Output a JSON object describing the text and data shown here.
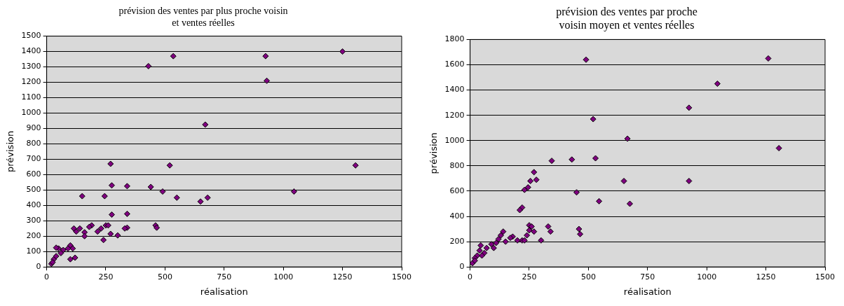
{
  "chart_data": [
    {
      "type": "scatter",
      "title": "prévision des ventes par plus proche voisin\net ventes réelles",
      "xlabel": "réalisation",
      "ylabel": "prévision",
      "marker": "diamond",
      "grid": "y",
      "legend": false,
      "xlim": [
        0,
        1500
      ],
      "xticks": [
        0,
        250,
        500,
        750,
        1000,
        1250,
        1500
      ],
      "ylim": [
        0,
        1500
      ],
      "yticks": [
        0,
        100,
        200,
        300,
        400,
        500,
        600,
        700,
        800,
        900,
        1000,
        1100,
        1200,
        1300,
        1400,
        1500
      ],
      "series": [
        {
          "color": "#800080",
          "x": [
            430,
            535,
            925,
            930,
            1250,
            670,
            1305,
            520,
            270,
            275,
            340,
            150,
            245,
            440,
            490,
            550,
            650,
            680,
            1045,
            275,
            340,
            460,
            465,
            340,
            330,
            300,
            240,
            270,
            250,
            260,
            230,
            215,
            190,
            180,
            160,
            160,
            115,
            140,
            125,
            120,
            100,
            110,
            90,
            70,
            50,
            40,
            30,
            20,
            25,
            60,
            40,
            100
          ],
          "values": [
            1305,
            1370,
            1370,
            1210,
            1400,
            925,
            660,
            660,
            670,
            530,
            525,
            460,
            460,
            520,
            490,
            450,
            425,
            450,
            490,
            340,
            345,
            270,
            255,
            255,
            250,
            205,
            175,
            215,
            270,
            270,
            250,
            230,
            270,
            260,
            225,
            200,
            250,
            250,
            230,
            60,
            140,
            120,
            120,
            110,
            120,
            125,
            50,
            20,
            30,
            90,
            70,
            50
          ]
        }
      ]
    },
    {
      "type": "scatter",
      "title": "prévision des ventes par proche\nvoisin moyen et ventes réelles",
      "xlabel": "réalisation",
      "ylabel": "prévision",
      "marker": "diamond",
      "grid": "y",
      "legend": false,
      "xlim": [
        0,
        1500
      ],
      "xticks": [
        0,
        250,
        500,
        750,
        1000,
        1250,
        1500
      ],
      "ylim": [
        0,
        1800
      ],
      "yticks": [
        0,
        200,
        400,
        600,
        800,
        1000,
        1200,
        1400,
        1600,
        1800
      ],
      "series": [
        {
          "color": "#800080",
          "x": [
            490,
            1260,
            1045,
            925,
            520,
            665,
            1305,
            530,
            430,
            345,
            270,
            280,
            255,
            245,
            230,
            220,
            210,
            650,
            925,
            450,
            545,
            675,
            460,
            465,
            330,
            340,
            250,
            260,
            250,
            270,
            240,
            220,
            200,
            230,
            300,
            180,
            170,
            150,
            120,
            130,
            140,
            110,
            90,
            100,
            70,
            60,
            50,
            45,
            40,
            30,
            20,
            10,
            20
          ],
          "values": [
            1640,
            1650,
            1450,
            1260,
            1170,
            1015,
            940,
            860,
            850,
            840,
            750,
            690,
            680,
            630,
            610,
            470,
            450,
            680,
            680,
            590,
            520,
            500,
            300,
            260,
            320,
            280,
            330,
            320,
            290,
            280,
            250,
            210,
            210,
            210,
            210,
            240,
            230,
            200,
            220,
            250,
            280,
            190,
            180,
            150,
            150,
            110,
            90,
            170,
            130,
            90,
            70,
            30,
            50
          ]
        }
      ]
    }
  ]
}
